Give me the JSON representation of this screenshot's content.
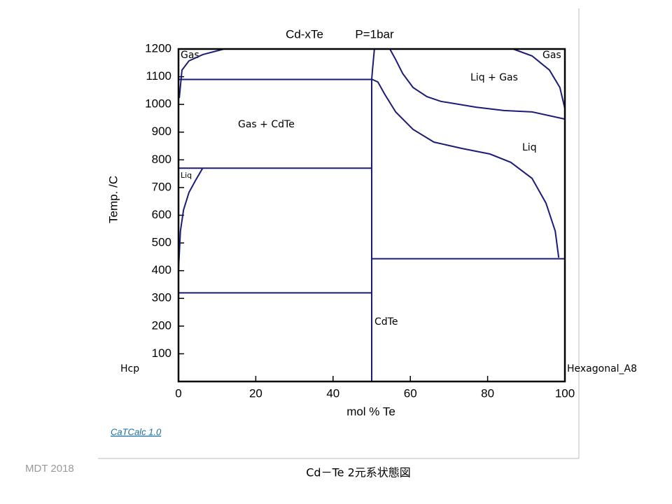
{
  "chart_data": {
    "type": "line",
    "title": "Cd-xTe",
    "subtitle": "P=1bar",
    "x_label": "mol %  Te",
    "y_label": "Temp.  /C",
    "xlim": [
      0,
      100
    ],
    "ylim": [
      0,
      1200
    ],
    "xticks": [
      0,
      20,
      40,
      60,
      80,
      100
    ],
    "yticks": [
      100,
      200,
      300,
      400,
      500,
      600,
      700,
      800,
      900,
      1000,
      1100,
      1200
    ],
    "color": "#1c1c78",
    "series": [
      {
        "x": [
          0.2,
          0.9,
          2.7,
          6.3,
          11.8
        ],
        "values": [
          1023,
          1124,
          1157,
          1180,
          1200
        ]
      },
      {
        "x": [
          0,
          0.5,
          1.3,
          2.7,
          4.5,
          6.3
        ],
        "values": [
          404,
          543,
          619,
          682,
          728,
          771
        ]
      },
      {
        "x": [
          50,
          50,
          50.2,
          50.7
        ],
        "values": [
          0,
          1090,
          1124,
          1200
        ]
      },
      {
        "x": [
          54.7,
          56.2,
          58,
          60.7,
          64.3,
          67.9,
          77,
          84.2,
          91.5,
          100
        ],
        "values": [
          1200,
          1162,
          1112,
          1061,
          1028,
          1011,
          990,
          978,
          973,
          947
        ]
      },
      {
        "x": [
          50,
          51.6,
          53.4,
          56.2,
          60.7,
          66.1,
          73.4,
          80.6,
          86,
          91.5,
          95.1,
          97.5,
          98.4
        ],
        "values": [
          1091,
          1081,
          1036,
          973,
          910,
          864,
          841,
          821,
          791,
          733,
          644,
          543,
          447
        ]
      },
      {
        "x": [
          86.6,
          91.5,
          96,
          98.7,
          100
        ],
        "values": [
          1200,
          1175,
          1124,
          1061,
          985
        ]
      },
      {
        "x": [
          0,
          50
        ],
        "values": [
          1090,
          1090
        ]
      },
      {
        "x": [
          0,
          50
        ],
        "values": [
          770,
          770
        ]
      },
      {
        "x": [
          0,
          50
        ],
        "values": [
          320,
          320
        ]
      },
      {
        "x": [
          50,
          100
        ],
        "values": [
          443,
          443
        ]
      }
    ],
    "annotations": [
      "Gas",
      "Gas",
      "Liq + Gas",
      "Gas + CdTe",
      "Liq",
      "Liq",
      "CdTe",
      "Hcp",
      "Hexagonal_A8"
    ]
  },
  "footer": {
    "software": "CaTCalc 1.0",
    "credit": "MDT   2018",
    "caption": "Cd－Te  2元系状態図"
  }
}
